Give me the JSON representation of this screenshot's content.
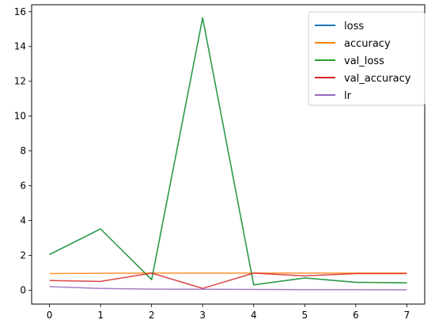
{
  "chart_data": {
    "type": "line",
    "x": [
      0,
      1,
      2,
      3,
      4,
      5,
      6,
      7
    ],
    "xlim": [
      -0.35,
      7.35
    ],
    "ylim": [
      -0.8,
      16.4
    ],
    "xticks": [
      0,
      1,
      2,
      3,
      4,
      5,
      6,
      7
    ],
    "yticks": [
      0,
      2,
      4,
      6,
      8,
      10,
      12,
      14,
      16
    ],
    "grid": false,
    "legend_position": "top-right",
    "series": [
      {
        "name": "loss",
        "color": "#1f77b4",
        "values": [
          2.05,
          3.52,
          0.6,
          15.65,
          0.3,
          0.7,
          0.45,
          0.42
        ]
      },
      {
        "name": "accuracy",
        "color": "#ff7f0e",
        "values": [
          0.95,
          0.97,
          0.98,
          0.98,
          0.98,
          0.98,
          0.98,
          0.98
        ]
      },
      {
        "name": "val_loss",
        "color": "#2ca02c",
        "values": [
          2.05,
          3.52,
          0.6,
          15.65,
          0.3,
          0.7,
          0.45,
          0.42
        ]
      },
      {
        "name": "val_accuracy",
        "color": "#d62728",
        "values": [
          0.55,
          0.5,
          0.98,
          0.1,
          0.98,
          0.82,
          0.95,
          0.95
        ]
      },
      {
        "name": "lr",
        "color": "#9467bd",
        "values": [
          0.2,
          0.1,
          0.06,
          0.05,
          0.04,
          0.03,
          0.03,
          0.02
        ]
      }
    ]
  }
}
